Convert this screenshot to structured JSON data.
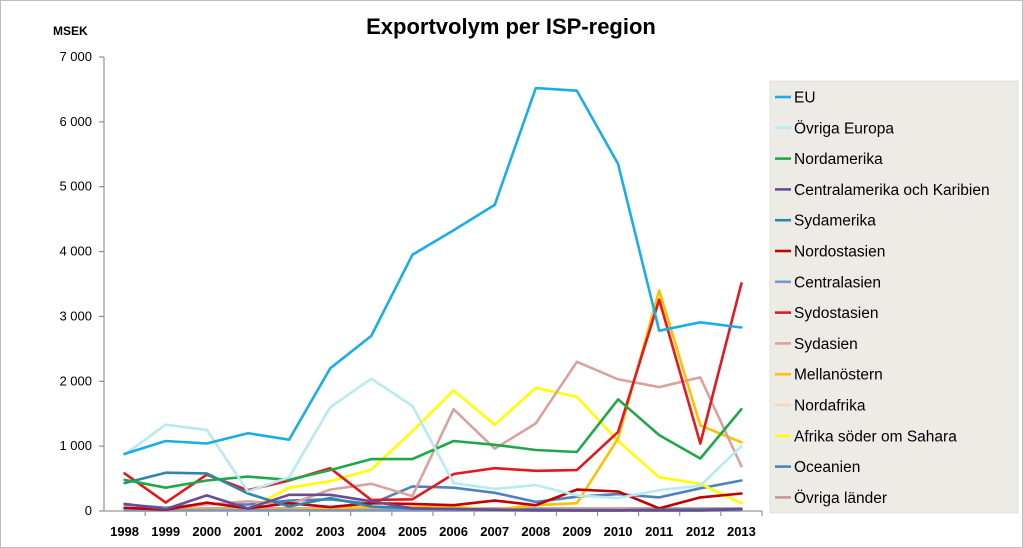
{
  "chart_data": {
    "type": "line",
    "title": "Exportvolym per ISP-region",
    "ylabel": "MSEK",
    "xlabel": "",
    "ylim": [
      0,
      7000
    ],
    "yticks": [
      0,
      1000,
      2000,
      3000,
      4000,
      5000,
      6000,
      7000
    ],
    "ytick_labels": [
      "0",
      "1 000",
      "2 000",
      "3 000",
      "4 000",
      "5 000",
      "6 000",
      "7 000"
    ],
    "legend_position": "right",
    "legend_background": "#EDEBE6",
    "categories": [
      "1998",
      "1999",
      "2000",
      "2001",
      "2002",
      "2003",
      "2004",
      "2005",
      "2006",
      "2007",
      "2008",
      "2009",
      "2010",
      "2011",
      "2012",
      "2013"
    ],
    "series": [
      {
        "name": "EU",
        "color": "#1AAEE6",
        "values": [
          880,
          1080,
          1040,
          1200,
          1100,
          2200,
          2700,
          3950,
          4330,
          4720,
          6520,
          6480,
          5350,
          2780,
          2910,
          2830
        ]
      },
      {
        "name": "Övriga Europa",
        "color": "#B7EAF2",
        "values": [
          870,
          1330,
          1250,
          300,
          520,
          1600,
          2040,
          1620,
          430,
          340,
          400,
          240,
          200,
          320,
          390,
          1000
        ]
      },
      {
        "name": "Nordamerika",
        "color": "#1FA84A",
        "values": [
          480,
          360,
          470,
          530,
          480,
          630,
          800,
          800,
          1080,
          1020,
          940,
          910,
          1720,
          1170,
          810,
          1570
        ]
      },
      {
        "name": "Centralamerika och Karibien",
        "color": "#6A4C93",
        "values": [
          110,
          30,
          240,
          40,
          250,
          250,
          150,
          40,
          30,
          20,
          10,
          10,
          10,
          10,
          10,
          30
        ]
      },
      {
        "name": "Sydamerika",
        "color": "#2E86A8",
        "values": [
          430,
          590,
          580,
          270,
          70,
          200,
          70,
          40,
          30,
          20,
          20,
          10,
          10,
          20,
          20,
          30
        ]
      },
      {
        "name": "Nordostasien",
        "color": "#C00000",
        "values": [
          50,
          20,
          130,
          40,
          120,
          60,
          120,
          110,
          90,
          160,
          90,
          330,
          300,
          40,
          210,
          270
        ]
      },
      {
        "name": "Centralasien",
        "color": "#7A97C9",
        "values": [
          10,
          10,
          10,
          10,
          10,
          10,
          10,
          10,
          10,
          10,
          10,
          10,
          10,
          10,
          10,
          10
        ]
      },
      {
        "name": "Sydostasien",
        "color": "#E31A1C",
        "values": [
          580,
          130,
          560,
          320,
          470,
          660,
          170,
          180,
          570,
          660,
          620,
          630,
          1220,
          3260,
          1040,
          3510
        ]
      },
      {
        "name": "Sydasien",
        "color": "#D9A29E",
        "values": [
          30,
          40,
          100,
          150,
          100,
          330,
          420,
          230,
          1570,
          960,
          1350,
          2300,
          2030,
          1910,
          2060,
          690
        ]
      },
      {
        "name": "Mellanöstern",
        "color": "#FFC000",
        "values": [
          20,
          20,
          20,
          20,
          20,
          40,
          60,
          60,
          60,
          20,
          90,
          120,
          1120,
          3400,
          1320,
          1060
        ]
      },
      {
        "name": "Nordafrika",
        "color": "#FBD5B5",
        "values": [
          10,
          10,
          10,
          10,
          10,
          10,
          10,
          10,
          10,
          10,
          10,
          10,
          10,
          10,
          10,
          10
        ]
      },
      {
        "name": "Afrika söder om Sahara",
        "color": "#FFFF00",
        "values": [
          20,
          10,
          10,
          20,
          360,
          460,
          640,
          1230,
          1860,
          1330,
          1900,
          1760,
          1080,
          520,
          420,
          120
        ]
      },
      {
        "name": "Oceanien",
        "color": "#4F81BD",
        "values": [
          100,
          50,
          110,
          100,
          160,
          180,
          110,
          380,
          360,
          280,
          140,
          220,
          260,
          210,
          350,
          470
        ]
      },
      {
        "name": "Övriga länder",
        "color": "#C49A94",
        "values": [
          40,
          30,
          40,
          40,
          40,
          40,
          40,
          40,
          40,
          40,
          40,
          40,
          40,
          40,
          40,
          40
        ]
      }
    ]
  }
}
